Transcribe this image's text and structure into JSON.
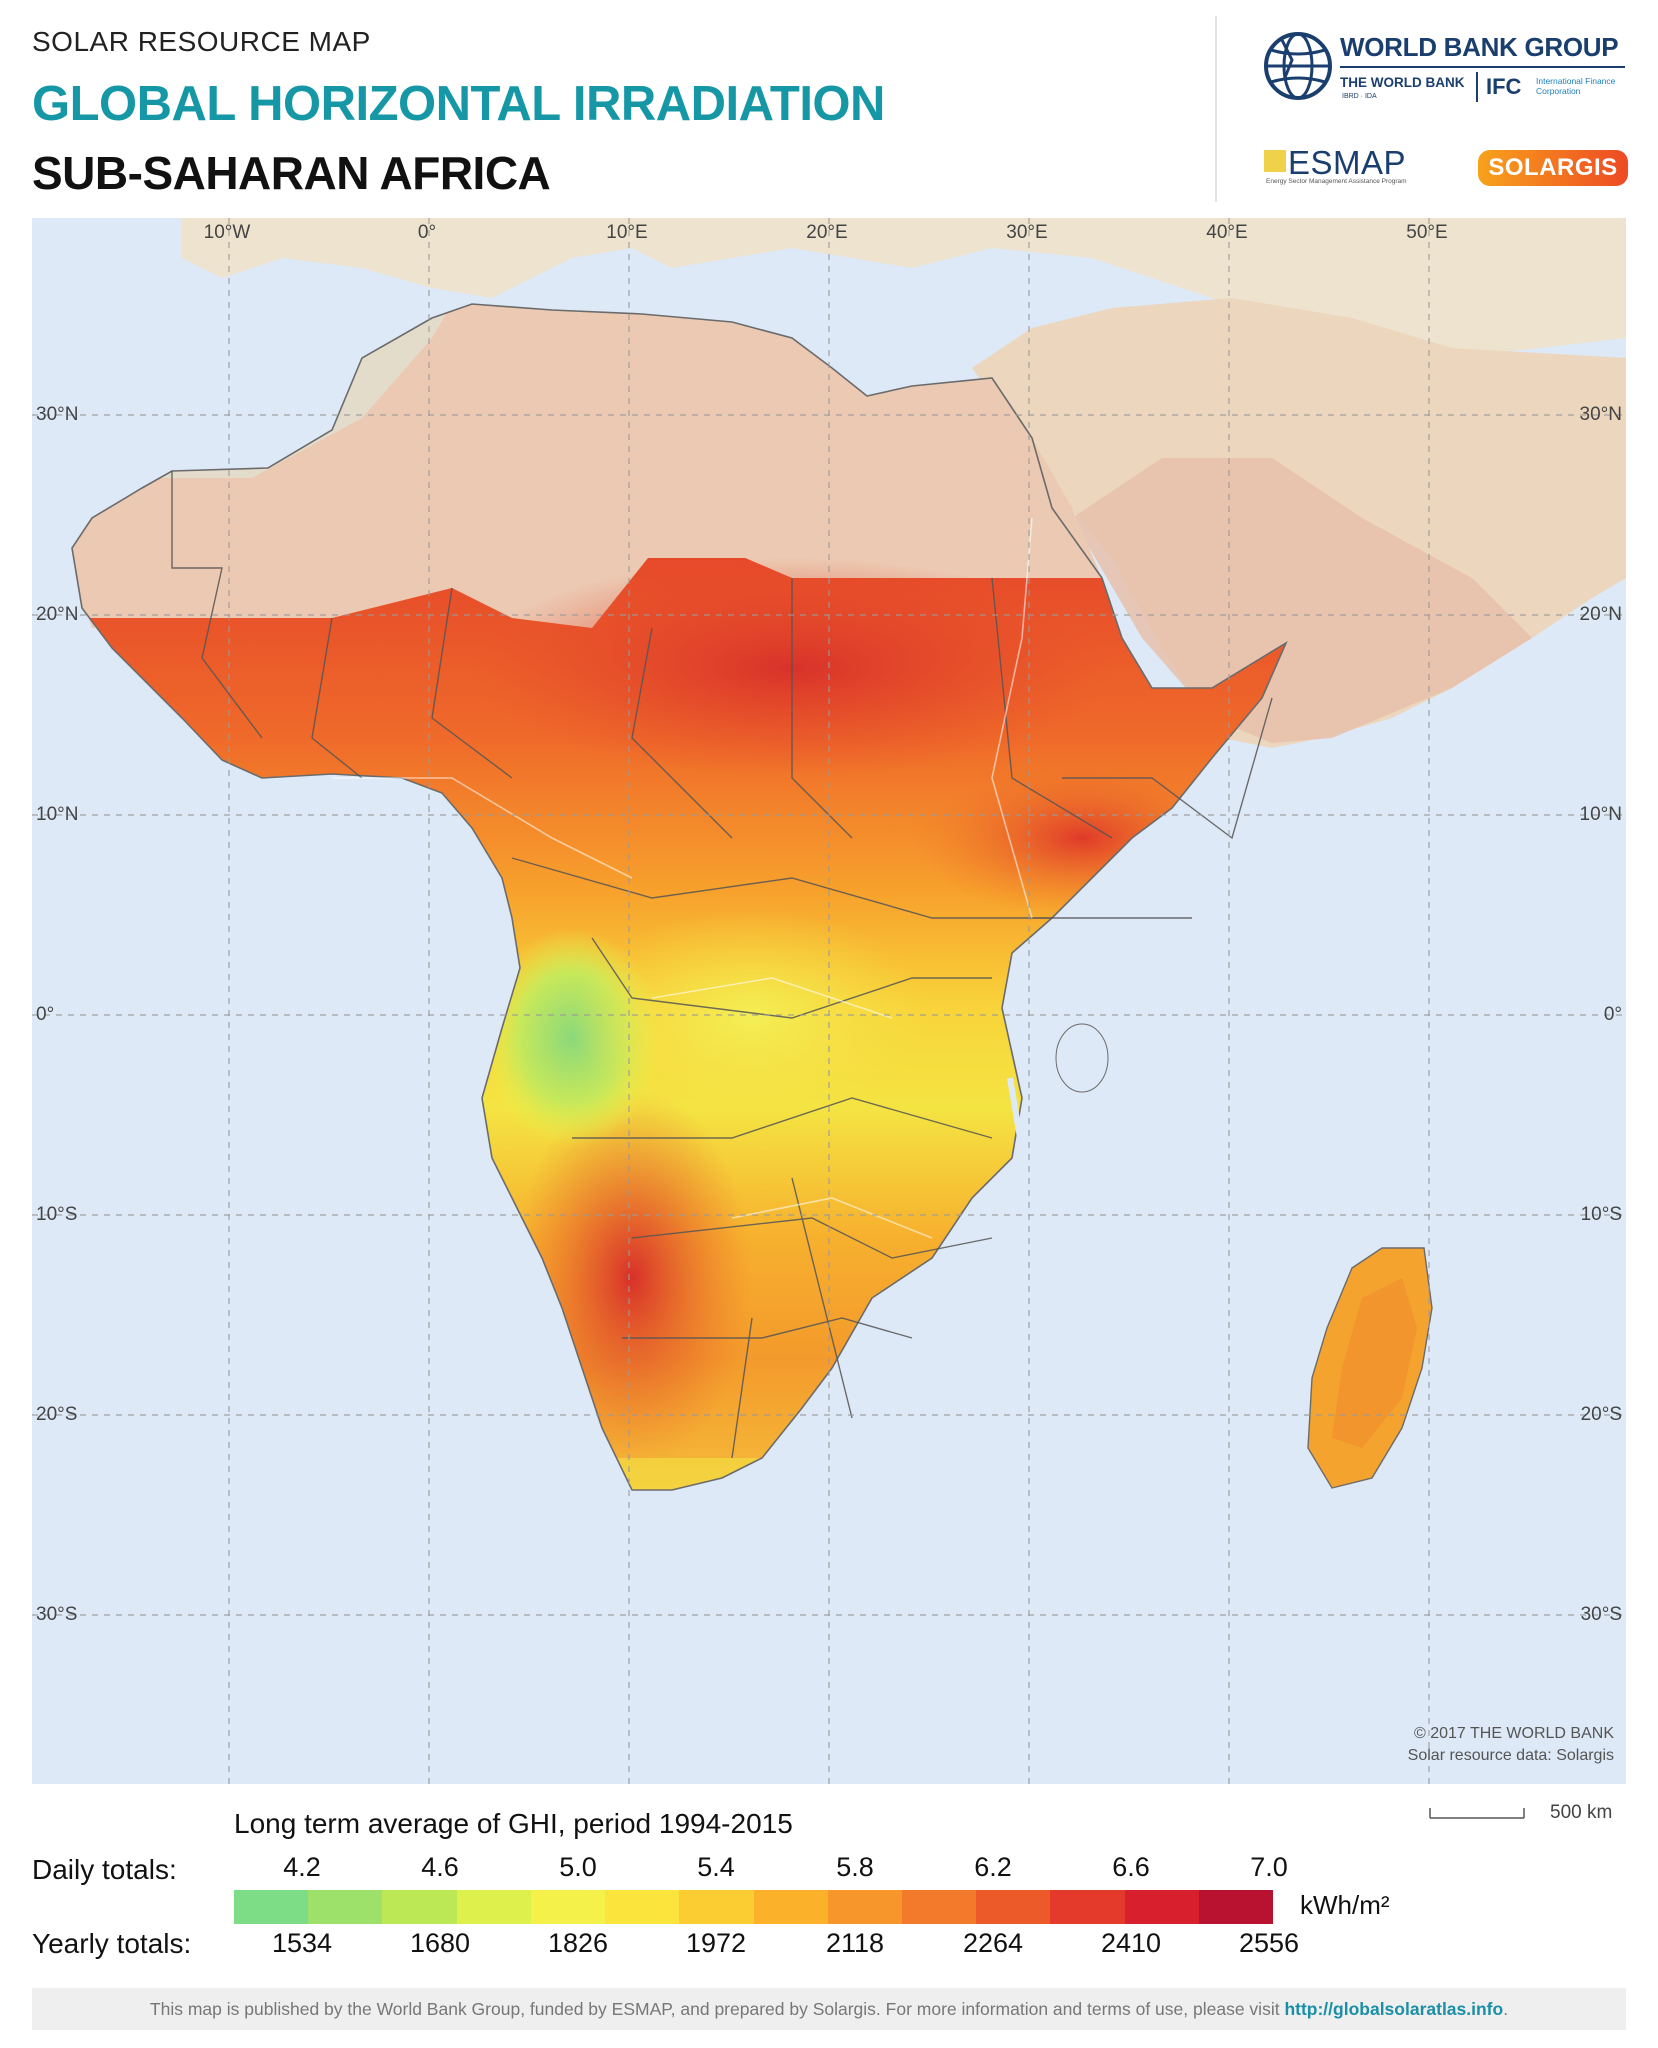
{
  "header": {
    "supertitle": "SOLAR RESOURCE MAP",
    "title": "GLOBAL HORIZONTAL IRRADIATION",
    "subtitle": "SUB-SAHARAN AFRICA"
  },
  "logos": {
    "wbg": "WORLD BANK GROUP",
    "wb": "THE WORLD BANK",
    "wb_sub": "IBRD · IDA",
    "ifc": "IFC",
    "ifc_sub": "International Finance Corporation",
    "esmap": "ESMAP",
    "esmap_sub": "Energy Sector Management Assistance Program",
    "solargis": "SOLARGIS"
  },
  "map": {
    "lon_labels": [
      "10°W",
      "0°",
      "10°E",
      "20°E",
      "30°E",
      "40°E",
      "50°E"
    ],
    "lat_labels_left": [
      "30°N",
      "20°N",
      "10°N",
      "0°",
      "10°S",
      "20°S",
      "30°S"
    ],
    "lat_labels_right": [
      "30°N",
      "20°N",
      "10°N",
      "0°",
      "10°S",
      "20°S",
      "30°S"
    ],
    "copyright": "© 2017 THE WORLD BANK",
    "source": "Solar resource data: Solargis",
    "colors": {
      "ocean": "#dde9f6",
      "land_neutral": "#ede3cf",
      "sahara": "#ecc9b2",
      "border": "#555555"
    }
  },
  "legend": {
    "title": "Long term average of GHI, period 1994-2015",
    "daily_label": "Daily totals:",
    "yearly_label": "Yearly totals:",
    "daily_ticks": [
      "4.2",
      "4.6",
      "5.0",
      "5.4",
      "5.8",
      "6.2",
      "6.6",
      "7.0"
    ],
    "yearly_ticks": [
      "1534",
      "1680",
      "1826",
      "1972",
      "2118",
      "2264",
      "2410",
      "2556"
    ],
    "unit": "kWh/m²",
    "scale": "500 km",
    "colors": [
      "#7ddc86",
      "#9de16a",
      "#bde856",
      "#def04c",
      "#f4f24a",
      "#fbe43b",
      "#fccd33",
      "#fbb22a",
      "#f7962a",
      "#f27a2a",
      "#ec5a2a",
      "#e33a2c",
      "#d81f2e",
      "#b81230"
    ]
  },
  "footer": {
    "text": "This map is published by the World Bank Group, funded by ESMAP, and prepared by Solargis. For more information and terms of use, please visit ",
    "link": "http://globalsolaratlas.info",
    "end": "."
  }
}
